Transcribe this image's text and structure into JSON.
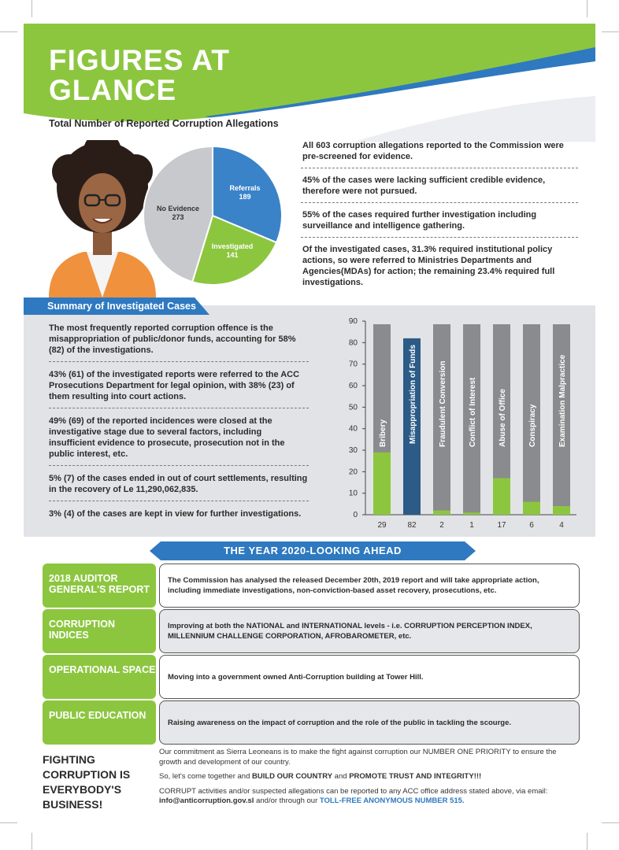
{
  "title": "FIGURES AT GLANCE",
  "pie_section_label": "Total Number of Reported Corruption Allegations",
  "pie": {
    "slices": [
      {
        "label": "Referrals",
        "value": 189,
        "color": "#3a83c9"
      },
      {
        "label": "Investigated",
        "value": 141,
        "color": "#8cc63f"
      },
      {
        "label": "No Evidence",
        "value": 273,
        "color": "#c8c9cc"
      }
    ]
  },
  "facts": [
    "All 603 corruption allegations reported to the Commission were pre-screened for evidence.",
    "45% of the cases were lacking sufficient credible evidence, therefore were not pursued.",
    "55% of the cases required further investigation including surveillance and intelligence gathering.",
    "Of the investigated cases, 31.3% required institutional policy actions, so were referred to Ministries Departments and Agencies(MDAs) for action; the remaining 23.4% required full investigations."
  ],
  "summary_title": "Summary of Investigated Cases",
  "summary_items": [
    "The most frequently reported corruption offence is the misappropriation of public/donor funds, accounting for 58% (82) of the investigations.",
    "43% (61) of the investigated reports were referred to the ACC Prosecutions Department for legal opinion, with 38% (23) of them resulting into court actions.",
    "49% (69) of the reported incidences were closed at the investigative stage due to several factors, including insufficient evidence to prosecute, prosecution not in the public interest, etc.",
    "5% (7) of the cases ended in out of court settlements, resulting in the recovery of Le 11,290,062,835.",
    "3% (4) of the cases are kept in view for further investigations."
  ],
  "chart_data": {
    "type": "bar",
    "categories": [
      "Bribery",
      "Misappropriation of Funds",
      "Fraudulent Conversion",
      "Conflict of Interest",
      "Abuse of Office",
      "Conspiracy",
      "Examination Malpractice"
    ],
    "values": [
      29,
      82,
      2,
      1,
      17,
      6,
      4
    ],
    "ylim": [
      0,
      90
    ],
    "yticks": [
      0,
      10,
      20,
      30,
      40,
      50,
      60,
      70,
      80,
      90
    ],
    "colors": {
      "bar": "#8cc63f",
      "highlight": "#2b5b86",
      "background_bar": "#8a8b8e"
    }
  },
  "ahead_title": "THE YEAR 2020-LOOKING AHEAD",
  "ahead_rows": [
    {
      "label": "2018 AUDITOR GENERAL'S REPORT",
      "text": "The Commission has analysed the released December 20th, 2019 report and will take appropriate action, including immediate investigations, non-conviction-based asset recovery, prosecutions, etc."
    },
    {
      "label": "CORRUPTION INDICES",
      "text": "Improving at both the NATIONAL and INTERNATIONAL levels - i.e. CORRUPTION PERCEPTION INDEX, MILLENNIUM CHALLENGE CORPORATION, AFROBAROMETER, etc."
    },
    {
      "label": "OPERATIONAL SPACE",
      "text": "Moving into a government owned Anti-Corruption building at Tower Hill."
    },
    {
      "label": "PUBLIC EDUCATION",
      "text": "Raising awareness on the impact of corruption and the role of the public in tackling the scourge."
    }
  ],
  "slogan": "FIGHTING CORRUPTION IS EVERYBODY'S BUSINESS!",
  "footer": {
    "p1": "Our commitment as Sierra Leoneans is to make the fight against corruption our NUMBER ONE PRIORITY to ensure the growth and development of our country.",
    "p2_a": "So, let's come together and ",
    "p2_b": "BUILD OUR COUNTRY",
    "p2_c": " and ",
    "p2_d": "PROMOTE TRUST AND INTEGRITY!!!",
    "p3_a": "CORRUPT activities and/or suspected allegations can be reported to any ACC office address stated above, via email: ",
    "p3_email": "info@anticorruption.gov.sl",
    "p3_b": "  and/or through our ",
    "p3_tollfree": "TOLL-FREE ANONYMOUS NUMBER 515."
  },
  "colors": {
    "green": "#8cc63f",
    "blue": "#2e79c0",
    "grey_band": "#e2e3e6"
  }
}
